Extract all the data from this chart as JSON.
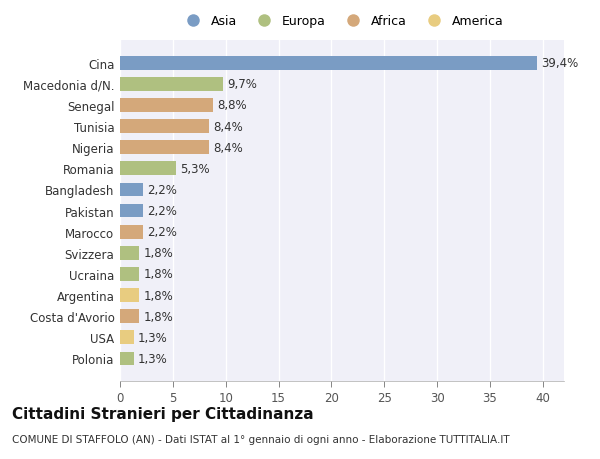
{
  "categories": [
    "Polonia",
    "USA",
    "Costa d'Avorio",
    "Argentina",
    "Ucraina",
    "Svizzera",
    "Marocco",
    "Pakistan",
    "Bangladesh",
    "Romania",
    "Nigeria",
    "Tunisia",
    "Senegal",
    "Macedonia d/N.",
    "Cina"
  ],
  "values": [
    1.3,
    1.3,
    1.8,
    1.8,
    1.8,
    1.8,
    2.2,
    2.2,
    2.2,
    5.3,
    8.4,
    8.4,
    8.8,
    9.7,
    39.4
  ],
  "continents": [
    "Europa",
    "America",
    "Africa",
    "America",
    "Europa",
    "Europa",
    "Africa",
    "Asia",
    "Asia",
    "Europa",
    "Africa",
    "Africa",
    "Africa",
    "Europa",
    "Asia"
  ],
  "colors": {
    "Asia": "#7a9cc4",
    "Europa": "#afc080",
    "Africa": "#d4a87a",
    "America": "#e8cc80"
  },
  "legend_order": [
    "Asia",
    "Europa",
    "Africa",
    "America"
  ],
  "title": "Cittadini Stranieri per Cittadinanza",
  "subtitle": "COMUNE DI STAFFOLO (AN) - Dati ISTAT al 1° gennaio di ogni anno - Elaborazione TUTTITALIA.IT",
  "xlim": [
    0,
    42
  ],
  "xticks": [
    0,
    5,
    10,
    15,
    20,
    25,
    30,
    35,
    40
  ],
  "background_color": "#ffffff",
  "plot_bg_color": "#f0f0f8",
  "grid_color": "#ffffff",
  "text_color": "#333333",
  "label_fontsize": 8.5,
  "title_fontsize": 11,
  "subtitle_fontsize": 7.5,
  "bar_height": 0.65
}
